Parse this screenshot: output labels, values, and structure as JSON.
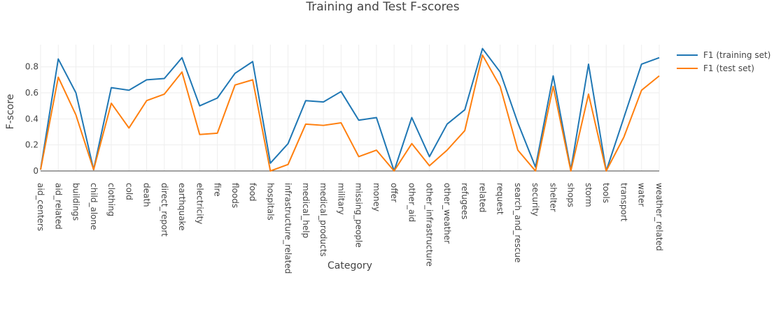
{
  "chart_data": {
    "type": "line",
    "title": "Training and Test F-scores",
    "xlabel": "Category",
    "ylabel": "F-score",
    "ylim": [
      0,
      0.97
    ],
    "yticks": [
      0,
      0.2,
      0.4,
      0.6,
      0.8
    ],
    "ytick_labels": [
      "0",
      "0.2",
      "0.4",
      "0.6",
      "0.8"
    ],
    "grid": true,
    "legend_position": "top-right",
    "categories": [
      "aid_centers",
      "aid_related",
      "buildings",
      "child_alone",
      "clothing",
      "cold",
      "death",
      "direct_report",
      "earthquake",
      "electricity",
      "fire",
      "floods",
      "food",
      "hospitals",
      "infrastructure_related",
      "medical_help",
      "medical_products",
      "military",
      "missing_people",
      "money",
      "offer",
      "other_aid",
      "other_infrastructure",
      "other_weather",
      "refugees",
      "related",
      "request",
      "search_and_rescue",
      "security",
      "shelter",
      "shops",
      "storm",
      "tools",
      "transport",
      "water",
      "weather_related"
    ],
    "series": [
      {
        "name": "F1 (training set)",
        "color": "#1f77b4",
        "values": [
          0.01,
          0.86,
          0.6,
          0.01,
          0.64,
          0.62,
          0.7,
          0.71,
          0.87,
          0.5,
          0.56,
          0.75,
          0.84,
          0.06,
          0.21,
          0.54,
          0.53,
          0.61,
          0.39,
          0.41,
          0.0,
          0.41,
          0.11,
          0.36,
          0.47,
          0.94,
          0.76,
          0.37,
          0.03,
          0.73,
          0.01,
          0.82,
          0.0,
          0.41,
          0.82,
          0.87
        ]
      },
      {
        "name": "F1 (test set)",
        "color": "#ff7f0e",
        "values": [
          0.01,
          0.72,
          0.43,
          0.01,
          0.52,
          0.33,
          0.54,
          0.59,
          0.76,
          0.28,
          0.29,
          0.66,
          0.7,
          0.0,
          0.05,
          0.36,
          0.35,
          0.37,
          0.11,
          0.16,
          0.0,
          0.21,
          0.04,
          0.16,
          0.31,
          0.89,
          0.65,
          0.16,
          0.0,
          0.65,
          0.0,
          0.59,
          0.0,
          0.26,
          0.62,
          0.73
        ]
      }
    ]
  }
}
